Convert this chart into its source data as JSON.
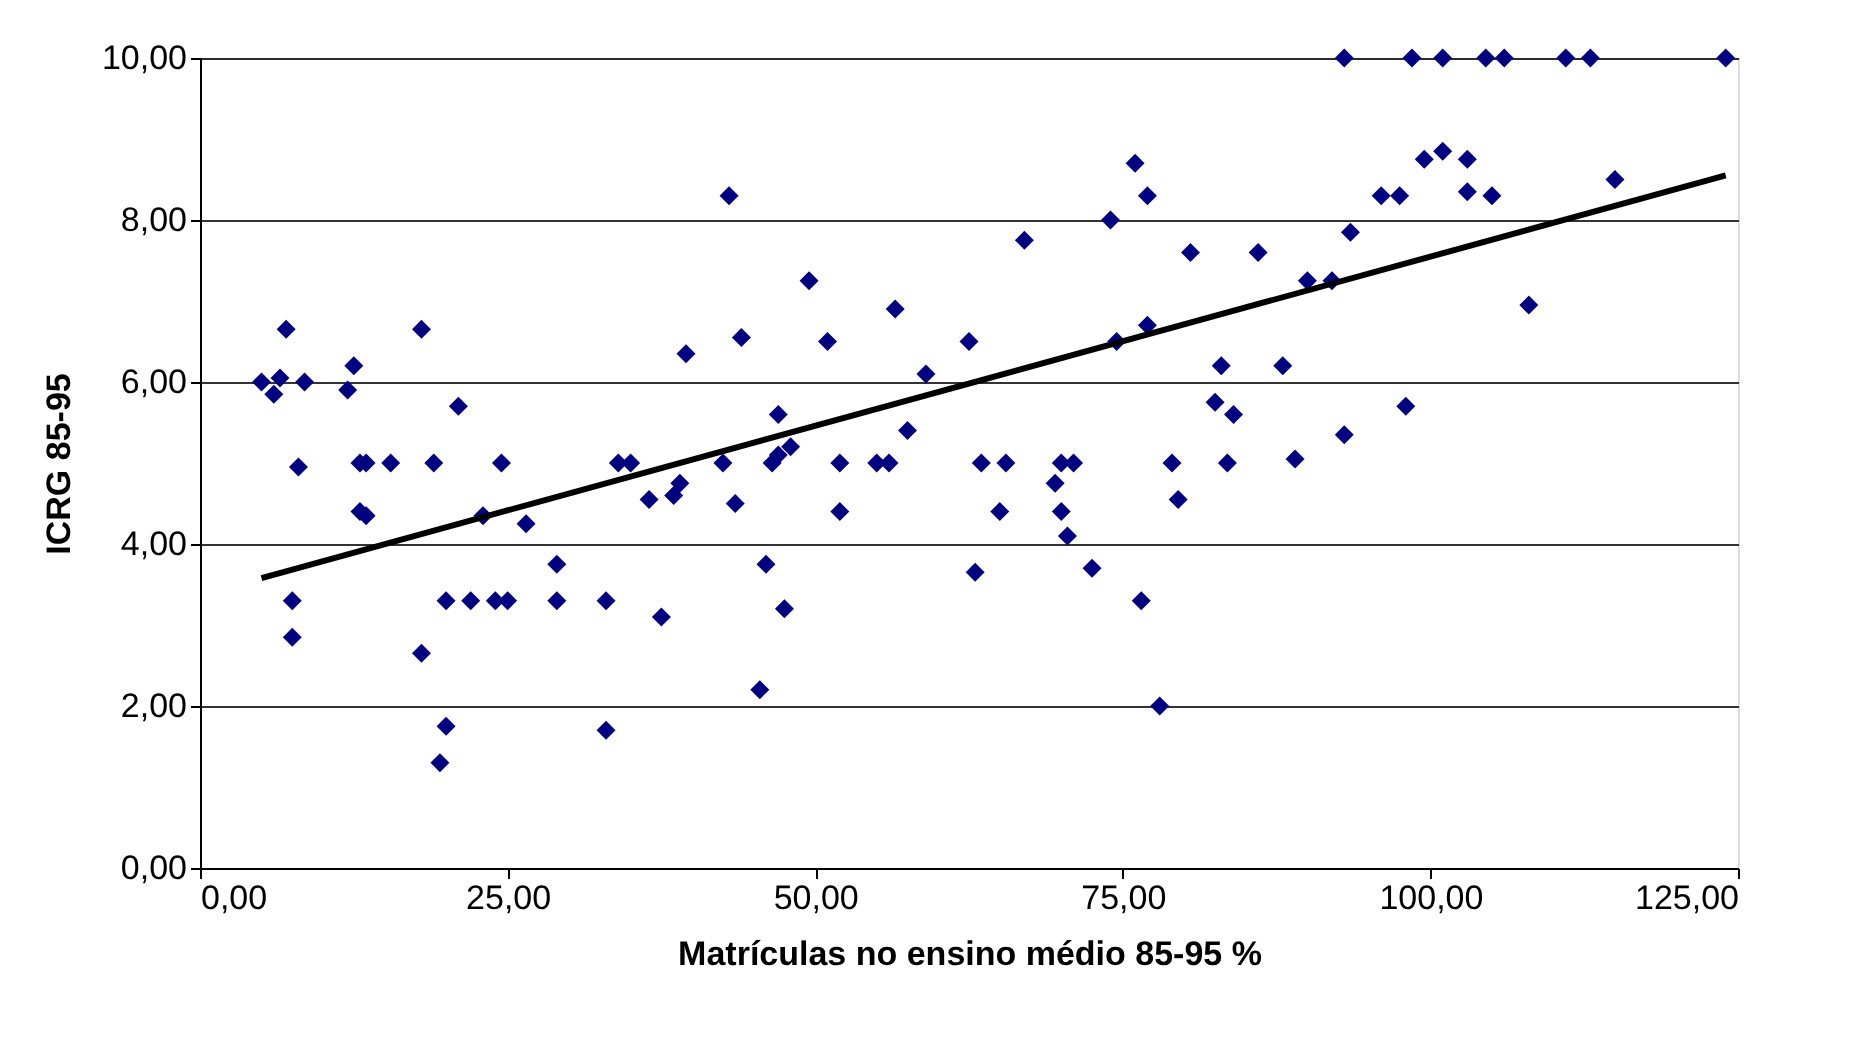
{
  "chart_data": {
    "type": "scatter",
    "xlabel": "Matrículas no ensino médio 85-95 %",
    "ylabel": "ICRG 85-95",
    "xlim": [
      0,
      125
    ],
    "ylim": [
      0,
      10
    ],
    "xticks": [
      {
        "value": 0,
        "label": "0,00"
      },
      {
        "value": 25,
        "label": "25,00"
      },
      {
        "value": 50,
        "label": "50,00"
      },
      {
        "value": 75,
        "label": "75,00"
      },
      {
        "value": 100,
        "label": "100,00"
      },
      {
        "value": 125,
        "label": "125,00"
      }
    ],
    "yticks": [
      {
        "value": 0,
        "label": "0,00"
      },
      {
        "value": 2,
        "label": "2,00"
      },
      {
        "value": 4,
        "label": "4,00"
      },
      {
        "value": 6,
        "label": "6,00"
      },
      {
        "value": 8,
        "label": "8,00"
      },
      {
        "value": 10,
        "label": "10,00"
      }
    ],
    "grid": "y",
    "series": [
      {
        "marker": "diamond",
        "color": "#000080",
        "x": [
          5,
          6,
          6.5,
          7,
          7.5,
          7.5,
          8,
          8.5,
          12,
          12.5,
          13,
          13,
          13.5,
          13.5,
          15.5,
          18,
          18,
          19,
          19.5,
          20,
          20,
          21,
          22,
          23,
          24,
          24.5,
          25,
          26.5,
          29,
          29,
          33,
          33,
          34,
          35,
          36.5,
          37.5,
          38.5,
          39,
          39.5,
          42.5,
          43,
          43.5,
          44,
          45.5,
          46,
          46.5,
          47,
          47,
          47.5,
          48,
          49.5,
          51,
          52,
          52,
          55,
          56,
          56.5,
          57.5,
          59,
          62.5,
          63,
          63.5,
          65,
          65.5,
          67,
          69.5,
          70,
          70,
          70.5,
          71,
          72.5,
          74,
          74.5,
          76,
          76.5,
          77,
          77,
          78,
          79,
          79.5,
          80.5,
          82.5,
          83,
          83.5,
          84,
          86,
          88,
          89,
          90,
          92,
          93,
          93,
          93.5,
          96,
          97.5,
          98,
          98.5,
          99.5,
          101,
          101,
          103,
          103,
          104.5,
          105,
          106,
          108,
          111,
          113,
          115,
          124
        ],
        "values": [
          6.0,
          5.85,
          6.05,
          6.65,
          2.85,
          3.3,
          4.95,
          6.0,
          5.9,
          6.2,
          5.0,
          4.4,
          4.35,
          5.0,
          5.0,
          6.65,
          2.65,
          5.0,
          1.3,
          1.75,
          3.3,
          5.7,
          3.3,
          4.35,
          3.3,
          5.0,
          3.3,
          4.25,
          3.75,
          3.3,
          3.3,
          1.7,
          5.0,
          5.0,
          4.55,
          3.1,
          4.6,
          4.75,
          6.35,
          5.0,
          8.3,
          4.5,
          6.55,
          2.2,
          3.75,
          5.0,
          5.1,
          5.6,
          3.2,
          5.2,
          7.25,
          6.5,
          4.4,
          5.0,
          5.0,
          5.0,
          6.9,
          5.4,
          6.1,
          6.5,
          3.65,
          5.0,
          4.4,
          5.0,
          7.75,
          4.75,
          5.0,
          4.4,
          4.1,
          5.0,
          3.7,
          8.0,
          6.5,
          8.7,
          3.3,
          6.7,
          8.3,
          2.0,
          5.0,
          4.55,
          7.6,
          5.75,
          6.2,
          5.0,
          5.6,
          7.6,
          6.2,
          5.05,
          7.25,
          7.25,
          5.35,
          10,
          7.85,
          8.3,
          8.3,
          5.7,
          10,
          8.75,
          10,
          8.85,
          8.35,
          8.75,
          10,
          8.3,
          10,
          6.95,
          10,
          10,
          8.5,
          10
        ]
      },
      {
        "type": "line",
        "marker": "none",
        "color": "#000000",
        "x": [
          5,
          124
        ],
        "values": [
          3.58,
          8.55
        ]
      }
    ]
  }
}
